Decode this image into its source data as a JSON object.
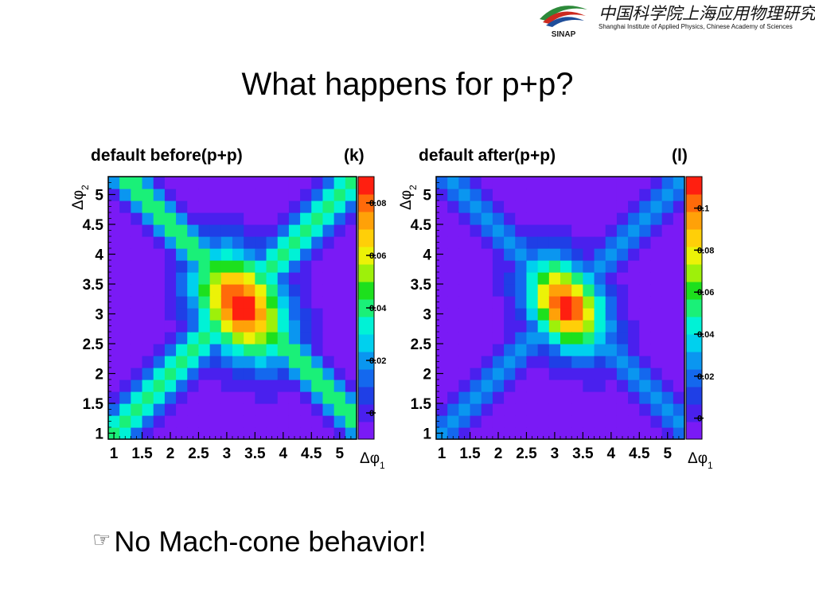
{
  "header": {
    "logo_text": "SINAP",
    "institute_cn": "中国科学院上海应用物理研究所",
    "institute_en": "Shanghai Institute of Applied Physics, Chinese Academy of Sciences",
    "colors": {
      "red": "#cc2a1f",
      "green": "#2d8a3a",
      "blue": "#1f4e9a"
    }
  },
  "slide": {
    "title": "What happens for p+p?",
    "bullet_icon": "pointing-hand-icon",
    "bullet_text": "No Mach-cone behavior!"
  },
  "chart_data": [
    {
      "type": "heatmap",
      "title": "default before(p+p)",
      "panel_label": "(k)",
      "xlabel": "Δφ1",
      "ylabel": "Δφ2",
      "xlim": [
        0.9,
        5.3
      ],
      "ylim": [
        0.9,
        5.3
      ],
      "x_ticks": [
        "1",
        "1.5",
        "2",
        "2.5",
        "3",
        "3.5",
        "4",
        "4.5",
        "5"
      ],
      "y_ticks": [
        "1",
        "1.5",
        "2",
        "2.5",
        "3",
        "3.5",
        "4",
        "4.5",
        "5"
      ],
      "colorbar_ticks": [
        "0",
        "0.02",
        "0.04",
        "0.06",
        "0.08"
      ],
      "zlim": [
        -0.01,
        0.09
      ],
      "grid": false,
      "field": {
        "peak_x": 3.25,
        "peak_y": 3.15,
        "peak_value": 0.088,
        "ridge_value": 0.048,
        "corner_value": -0.008,
        "spread_x": 0.55,
        "spread_y": 0.6,
        "ridge_width": 0.28
      }
    },
    {
      "type": "heatmap",
      "title": "default after(p+p)",
      "panel_label": "(l)",
      "xlabel": "Δφ1",
      "ylabel": "Δφ2",
      "xlim": [
        0.9,
        5.3
      ],
      "ylim": [
        0.9,
        5.3
      ],
      "x_ticks": [
        "1",
        "1.5",
        "2",
        "2.5",
        "3",
        "3.5",
        "4",
        "4.5",
        "5"
      ],
      "y_ticks": [
        "1",
        "1.5",
        "2",
        "2.5",
        "3",
        "3.5",
        "4",
        "4.5",
        "5"
      ],
      "colorbar_ticks": [
        "0",
        "0.02",
        "0.04",
        "0.06",
        "0.08",
        "0.1"
      ],
      "zlim": [
        -0.01,
        0.115
      ],
      "grid": false,
      "field": {
        "peak_x": 3.2,
        "peak_y": 3.15,
        "peak_value": 0.112,
        "ridge_value": 0.03,
        "corner_value": -0.006,
        "spread_x": 0.45,
        "spread_y": 0.5,
        "ridge_width": 0.26
      }
    }
  ]
}
